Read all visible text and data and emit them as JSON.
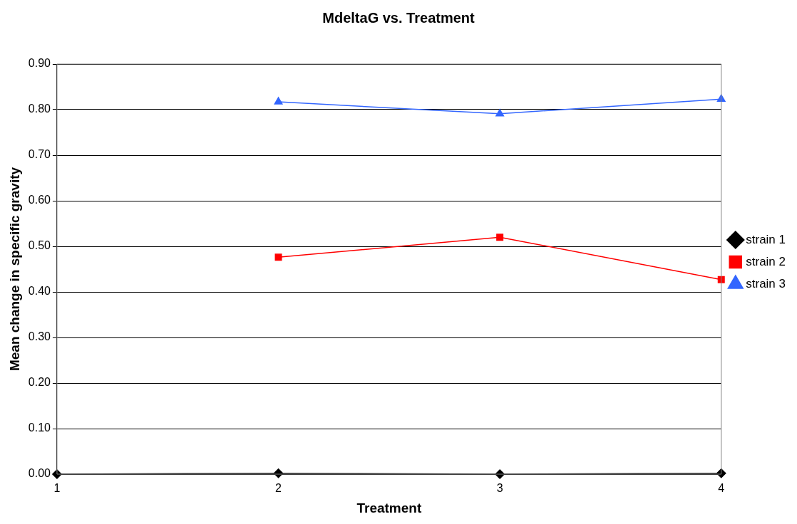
{
  "chart_data": {
    "type": "line",
    "title": "MdeltaG vs. Treatment",
    "xlabel": "Treatment",
    "ylabel": "Mean change in specific gravity",
    "x": [
      1,
      2,
      3,
      4
    ],
    "xlim": [
      1,
      4
    ],
    "xticks": [
      1,
      2,
      3,
      4
    ],
    "ylim": [
      0,
      0.9
    ],
    "yticks": [
      {
        "value": 0,
        "label": "0.00"
      },
      {
        "value": 0.1,
        "label": "0.10"
      },
      {
        "value": 0.2,
        "label": "0.20"
      },
      {
        "value": 0.3,
        "label": "0.30"
      },
      {
        "value": 0.4,
        "label": "0.40"
      },
      {
        "value": 0.5,
        "label": "0.50"
      },
      {
        "value": 0.6,
        "label": "0.60"
      },
      {
        "value": 0.7,
        "label": "0.70"
      },
      {
        "value": 0.8,
        "label": "0.80"
      },
      {
        "value": 0.9,
        "label": "0.90"
      }
    ],
    "grid": "y",
    "legend": "right",
    "line_style": "solid",
    "series": [
      {
        "name": "strain 1",
        "color": "#000000",
        "marker": "diamond",
        "values": [
          0,
          0.002,
          0,
          0.002
        ]
      },
      {
        "name": "strain 2",
        "color": "#ff0000",
        "marker": "square",
        "values": [
          null,
          0.476,
          0.52,
          0.427
        ]
      },
      {
        "name": "strain 3",
        "color": "#3366ff",
        "marker": "triangle",
        "values": [
          null,
          0.817,
          0.791,
          0.823
        ]
      }
    ]
  }
}
